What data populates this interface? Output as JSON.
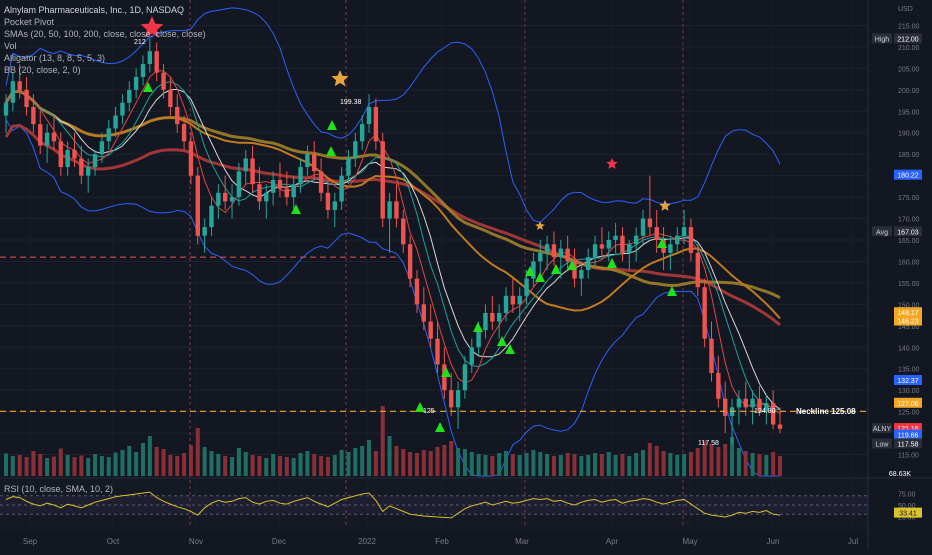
{
  "legend": {
    "title": "Alnylam Pharmaceuticals, Inc., 1D, NASDAQ",
    "indicators": [
      "Pocket Pivot",
      "SMAs (20, 50, 100, 200, close, close, close, close)",
      "Vol",
      "Alligator (13, 8, 8, 5, 5, 3)",
      "BB (20, close, 2, 0)"
    ],
    "rsi": "RSI (10, close, SMA, 10, 2)"
  },
  "chart_data": {
    "type": "candlestick",
    "y_axis": {
      "unit_label": "USD",
      "ylim": [
        110,
        220
      ],
      "ticks": [
        115,
        120,
        125,
        130,
        135,
        140,
        145,
        150,
        155,
        160,
        165,
        170,
        175,
        180,
        185,
        190,
        195,
        200,
        205,
        210,
        215
      ]
    },
    "x_axis": {
      "tick_labels": [
        "Sep",
        "Oct",
        "Nov",
        "Dec",
        "2022",
        "Feb",
        "Mar",
        "Apr",
        "May",
        "Jun",
        "Jul"
      ]
    },
    "price_labels": [
      {
        "label": "High",
        "value": "212.00",
        "color": "#2a2e39"
      },
      {
        "label": "",
        "value": "180.22",
        "color": "#2962ff"
      },
      {
        "label": "Avg",
        "value": "167.03",
        "color": "#2a2e39"
      },
      {
        "label": "",
        "value": "148.17",
        "color": "#f5a623"
      },
      {
        "label": "",
        "value": "146.23",
        "color": "#f5a623"
      },
      {
        "label": "",
        "value": "132.37",
        "color": "#2962ff"
      },
      {
        "label": "",
        "value": "127.06",
        "color": "#f5a623"
      },
      {
        "label": "ALNY",
        "value": "121.16",
        "color": "#f23645"
      },
      {
        "label": "",
        "value": "119.66",
        "color": "#2962ff"
      },
      {
        "label": "Low",
        "value": "117.58",
        "color": "#2a2e39"
      }
    ],
    "annotations": [
      {
        "text": "212",
        "kind": "high-marker"
      },
      {
        "text": "199.38",
        "kind": "peak"
      },
      {
        "text": "125",
        "kind": "trough"
      },
      {
        "text": "117.58",
        "kind": "low"
      },
      {
        "text": "124.80",
        "kind": "recent"
      },
      {
        "text": "Neckline 125.08",
        "kind": "neckline"
      }
    ],
    "volume_label": "68.63K",
    "candles": [
      [
        194,
        199,
        190,
        197
      ],
      [
        197,
        204,
        195,
        202
      ],
      [
        202,
        206,
        198,
        200
      ],
      [
        200,
        203,
        194,
        196
      ],
      [
        196,
        199,
        190,
        192
      ],
      [
        192,
        195,
        185,
        187
      ],
      [
        187,
        192,
        183,
        190
      ],
      [
        190,
        194,
        186,
        188
      ],
      [
        188,
        190,
        180,
        182
      ],
      [
        182,
        188,
        180,
        186
      ],
      [
        186,
        190,
        182,
        184
      ],
      [
        184,
        187,
        178,
        180
      ],
      [
        180,
        184,
        176,
        182
      ],
      [
        182,
        186,
        180,
        185
      ],
      [
        185,
        190,
        183,
        188
      ],
      [
        188,
        193,
        186,
        191
      ],
      [
        191,
        196,
        189,
        194
      ],
      [
        194,
        199,
        192,
        197
      ],
      [
        197,
        202,
        195,
        200
      ],
      [
        200,
        205,
        198,
        203
      ],
      [
        203,
        208,
        201,
        206
      ],
      [
        206,
        212,
        204,
        209
      ],
      [
        209,
        211,
        202,
        204
      ],
      [
        204,
        206,
        198,
        200
      ],
      [
        200,
        203,
        194,
        196
      ],
      [
        196,
        199,
        190,
        192
      ],
      [
        192,
        194,
        186,
        188
      ],
      [
        188,
        190,
        178,
        180
      ],
      [
        180,
        182,
        164,
        166
      ],
      [
        166,
        170,
        162,
        168
      ],
      [
        168,
        175,
        166,
        173
      ],
      [
        173,
        178,
        170,
        176
      ],
      [
        176,
        180,
        172,
        174
      ],
      [
        174,
        178,
        170,
        175
      ],
      [
        175,
        183,
        173,
        181
      ],
      [
        181,
        186,
        178,
        184
      ],
      [
        184,
        187,
        176,
        178
      ],
      [
        178,
        182,
        172,
        174
      ],
      [
        174,
        178,
        170,
        176
      ],
      [
        176,
        181,
        173,
        179
      ],
      [
        179,
        183,
        175,
        177
      ],
      [
        177,
        181,
        173,
        175
      ],
      [
        175,
        180,
        172,
        178
      ],
      [
        178,
        184,
        176,
        182
      ],
      [
        182,
        187,
        180,
        185
      ],
      [
        185,
        188,
        179,
        181
      ],
      [
        181,
        184,
        174,
        176
      ],
      [
        176,
        179,
        170,
        172
      ],
      [
        172,
        176,
        168,
        174
      ],
      [
        174,
        182,
        172,
        180
      ],
      [
        180,
        186,
        178,
        184
      ],
      [
        184,
        190,
        182,
        188
      ],
      [
        188,
        194,
        186,
        192
      ],
      [
        192,
        199,
        190,
        196
      ],
      [
        196,
        198,
        186,
        188
      ],
      [
        188,
        190,
        168,
        170
      ],
      [
        170,
        176,
        162,
        174
      ],
      [
        174,
        178,
        168,
        170
      ],
      [
        170,
        172,
        162,
        164
      ],
      [
        164,
        166,
        154,
        156
      ],
      [
        156,
        158,
        148,
        150
      ],
      [
        150,
        154,
        144,
        146
      ],
      [
        146,
        150,
        140,
        142
      ],
      [
        142,
        146,
        134,
        136
      ],
      [
        136,
        140,
        128,
        130
      ],
      [
        130,
        134,
        124,
        126
      ],
      [
        126,
        132,
        121,
        130
      ],
      [
        130,
        138,
        128,
        136
      ],
      [
        136,
        142,
        134,
        140
      ],
      [
        140,
        146,
        138,
        144
      ],
      [
        144,
        150,
        142,
        148
      ],
      [
        148,
        152,
        144,
        146
      ],
      [
        146,
        150,
        142,
        148
      ],
      [
        148,
        154,
        146,
        152
      ],
      [
        152,
        156,
        148,
        150
      ],
      [
        150,
        154,
        146,
        152
      ],
      [
        152,
        158,
        150,
        156
      ],
      [
        156,
        162,
        154,
        160
      ],
      [
        160,
        165,
        157,
        162
      ],
      [
        162,
        166,
        158,
        164
      ],
      [
        164,
        167,
        159,
        161
      ],
      [
        161,
        165,
        156,
        163
      ],
      [
        163,
        166,
        158,
        160
      ],
      [
        160,
        163,
        154,
        156
      ],
      [
        156,
        160,
        152,
        158
      ],
      [
        158,
        163,
        156,
        161
      ],
      [
        161,
        166,
        159,
        164
      ],
      [
        164,
        168,
        161,
        163
      ],
      [
        163,
        167,
        160,
        165
      ],
      [
        165,
        169,
        162,
        166
      ],
      [
        166,
        168,
        160,
        162
      ],
      [
        162,
        165,
        158,
        164
      ],
      [
        164,
        168,
        160,
        166
      ],
      [
        166,
        172,
        164,
        170
      ],
      [
        170,
        180,
        166,
        168
      ],
      [
        168,
        172,
        162,
        165
      ],
      [
        165,
        168,
        158,
        162
      ],
      [
        162,
        166,
        158,
        164
      ],
      [
        164,
        168,
        162,
        166
      ],
      [
        166,
        172,
        164,
        168
      ],
      [
        168,
        170,
        160,
        162
      ],
      [
        162,
        164,
        152,
        154
      ],
      [
        154,
        156,
        140,
        142
      ],
      [
        142,
        146,
        132,
        134
      ],
      [
        134,
        138,
        126,
        128
      ],
      [
        128,
        132,
        120,
        124
      ],
      [
        124,
        128,
        117.6,
        126
      ],
      [
        126,
        130,
        122,
        128
      ],
      [
        128,
        132,
        124,
        126
      ],
      [
        126,
        130,
        122,
        128
      ],
      [
        128,
        131,
        124,
        125
      ],
      [
        125,
        129,
        122,
        127
      ],
      [
        127,
        130,
        121,
        122
      ],
      [
        122,
        126,
        120,
        121
      ]
    ],
    "volume": [
      45,
      40,
      42,
      38,
      50,
      44,
      36,
      39,
      55,
      42,
      38,
      41,
      36,
      44,
      40,
      38,
      47,
      52,
      60,
      48,
      66,
      80,
      58,
      54,
      42,
      40,
      46,
      62,
      96,
      58,
      50,
      44,
      40,
      38,
      56,
      48,
      42,
      40,
      36,
      44,
      40,
      38,
      36,
      46,
      50,
      44,
      40,
      38,
      42,
      52,
      48,
      56,
      60,
      72,
      50,
      140,
      80,
      60,
      54,
      48,
      46,
      52,
      50,
      58,
      62,
      70,
      56,
      54,
      48,
      44,
      42,
      40,
      46,
      50,
      44,
      42,
      46,
      52,
      48,
      44,
      40,
      42,
      46,
      44,
      40,
      42,
      46,
      44,
      48,
      42,
      44,
      40,
      46,
      52,
      66,
      60,
      50,
      46,
      42,
      44,
      48,
      56,
      70,
      62,
      58,
      64,
      78,
      56,
      50,
      46,
      44,
      42,
      48,
      40
    ],
    "rsi": [
      62,
      68,
      66,
      58,
      52,
      48,
      54,
      50,
      44,
      52,
      48,
      44,
      50,
      56,
      60,
      64,
      68,
      70,
      72,
      74,
      76,
      78,
      66,
      58,
      52,
      46,
      42,
      36,
      28,
      44,
      54,
      60,
      56,
      58,
      64,
      66,
      56,
      52,
      58,
      60,
      54,
      52,
      58,
      62,
      66,
      58,
      52,
      46,
      54,
      62,
      66,
      70,
      74,
      76,
      60,
      36,
      48,
      42,
      36,
      30,
      28,
      26,
      25,
      24,
      23,
      22,
      32,
      42,
      48,
      52,
      56,
      50,
      54,
      58,
      54,
      56,
      60,
      64,
      62,
      64,
      58,
      60,
      54,
      50,
      56,
      60,
      62,
      56,
      60,
      62,
      54,
      58,
      60,
      64,
      62,
      56,
      52,
      56,
      60,
      62,
      52,
      42,
      32,
      28,
      26,
      24,
      28,
      34,
      32,
      36,
      34,
      38,
      30,
      28
    ],
    "rsi_levels": [
      30,
      50,
      70
    ],
    "rsi_ticks": [
      "75.00",
      "50.00",
      "25.00"
    ],
    "rsi_value": "33.41"
  }
}
